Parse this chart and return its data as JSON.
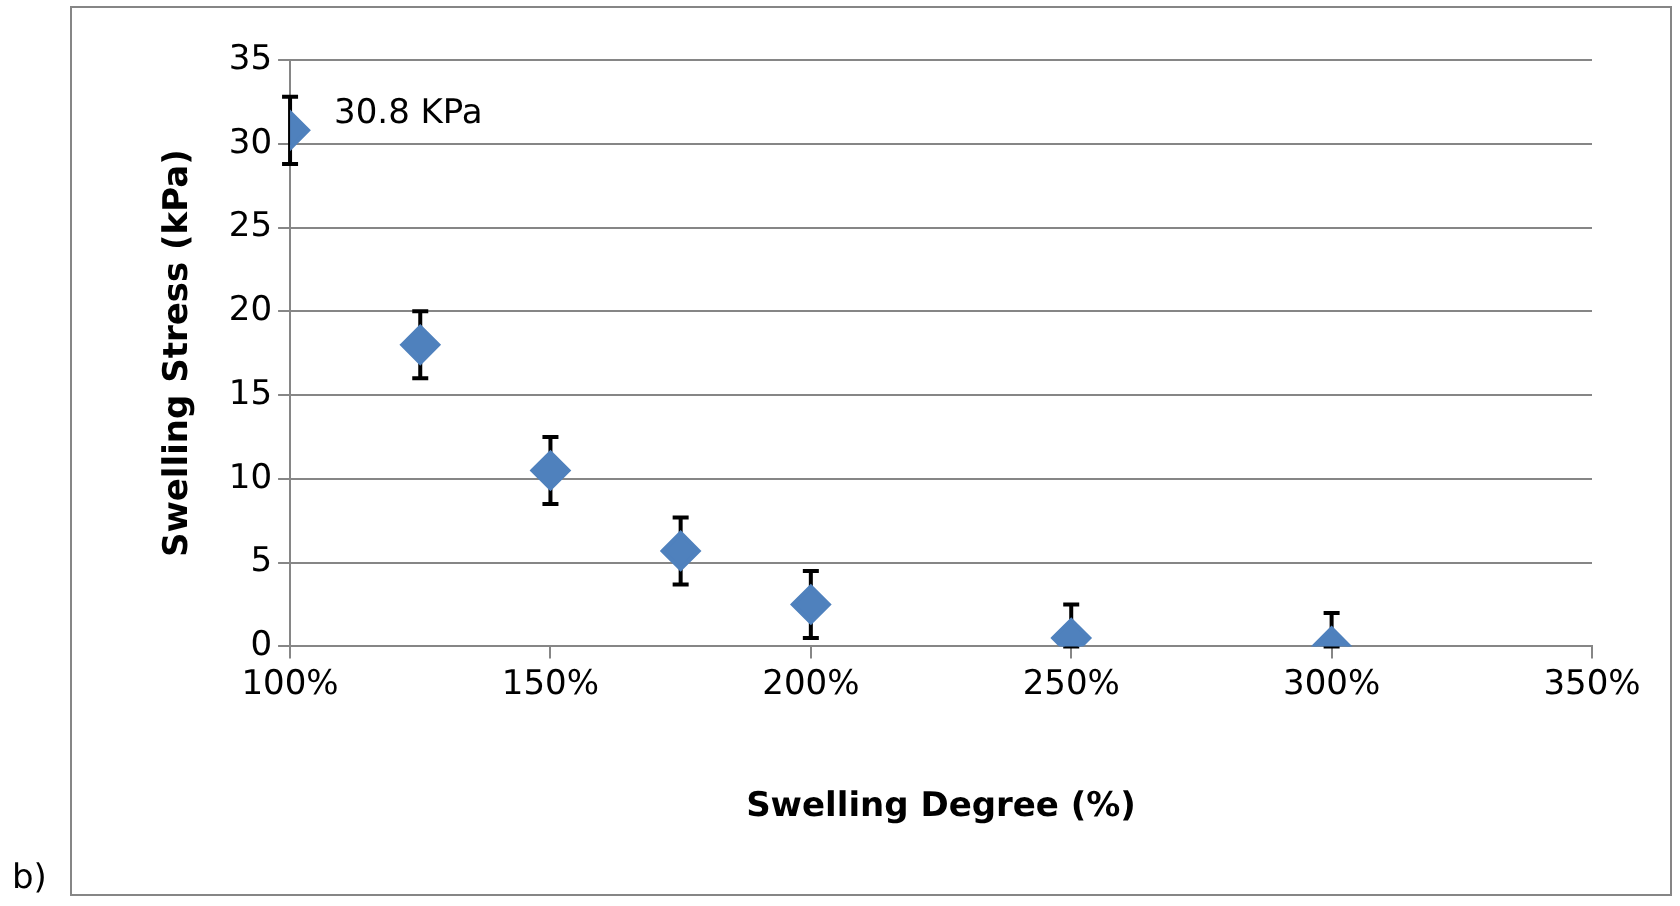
{
  "chart_data": {
    "type": "scatter",
    "xlabel": "Swelling Degree (%)",
    "ylabel": "Swelling Stress (kPa)",
    "x": [
      100,
      125,
      150,
      175,
      200,
      250,
      300
    ],
    "series": [
      {
        "color": "#4f81bd",
        "values": [
          30.8,
          18,
          10.5,
          5.7,
          2.5,
          0.5,
          0
        ],
        "errors": [
          2,
          2,
          2,
          2,
          2,
          [
            0,
            2.5
          ],
          [
            0,
            2
          ]
        ]
      }
    ],
    "marker": "diamond",
    "grid": "y",
    "legend": false,
    "xlim": [
      100,
      350
    ],
    "xticks": [
      {
        "value": 100,
        "label": "100%"
      },
      {
        "value": 150,
        "label": "150%"
      },
      {
        "value": 200,
        "label": "200%"
      },
      {
        "value": 250,
        "label": "250%"
      },
      {
        "value": 300,
        "label": "300%"
      },
      {
        "value": 350,
        "label": "350%"
      }
    ],
    "ylim": [
      0,
      35
    ],
    "yticks": [
      0,
      5,
      10,
      15,
      20,
      25,
      30,
      35
    ],
    "annotations": [
      {
        "text": "30.8 KPa",
        "x": 100,
        "y": 30.8
      },
      "b)"
    ]
  }
}
